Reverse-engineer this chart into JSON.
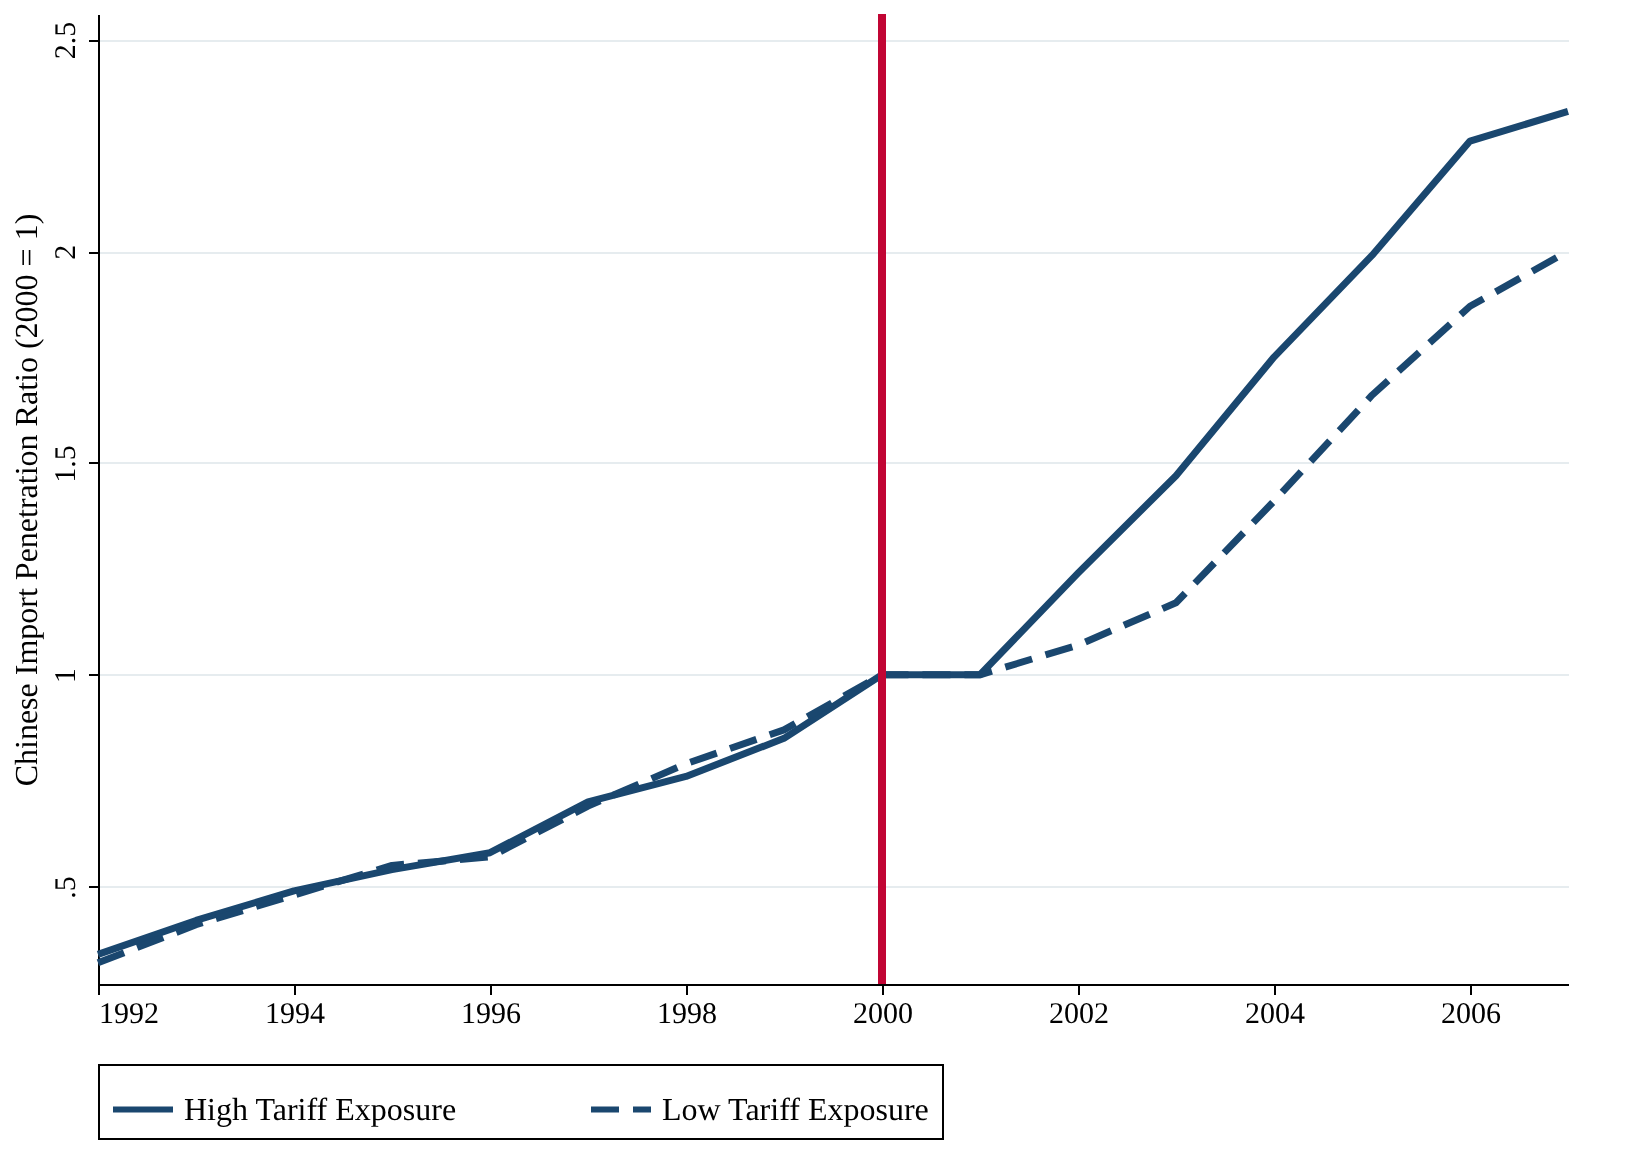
{
  "chart_data": {
    "type": "line",
    "ylabel": "Chinese Import Penetration Ratio (2000 = 1)",
    "x": [
      1992,
      1993,
      1994,
      1995,
      1996,
      1997,
      1998,
      1999,
      2000,
      2001,
      2002,
      2003,
      2004,
      2005,
      2006,
      2007
    ],
    "series": [
      {
        "name": "High Tariff Exposure",
        "color": "#1a476f",
        "line_style": "solid",
        "values": [
          0.34,
          0.42,
          0.49,
          0.54,
          0.58,
          0.7,
          0.76,
          0.85,
          1.0,
          1.0,
          1.24,
          1.47,
          1.75,
          1.99,
          2.26,
          2.33
        ]
      },
      {
        "name": "Low Tariff Exposure",
        "color": "#1a476f",
        "line_style": "dashed",
        "values": [
          0.32,
          0.41,
          0.48,
          0.55,
          0.57,
          0.69,
          0.79,
          0.87,
          1.0,
          1.0,
          1.07,
          1.17,
          1.41,
          1.66,
          1.87,
          2.0
        ]
      }
    ],
    "xlim": [
      1992,
      2007
    ],
    "xticks": [
      1992,
      1994,
      1996,
      1998,
      2000,
      2002,
      2004,
      2006
    ],
    "ylim": [
      0.27,
      2.56
    ],
    "yticks": [
      {
        "value": 0.5,
        "label": ".5"
      },
      1,
      1.5,
      2,
      2.5
    ],
    "ref_lines": [
      {
        "axis": "x",
        "value": 2000,
        "color": "#c10534"
      }
    ],
    "grid": "y",
    "legend": "bottom",
    "marker": "none"
  }
}
